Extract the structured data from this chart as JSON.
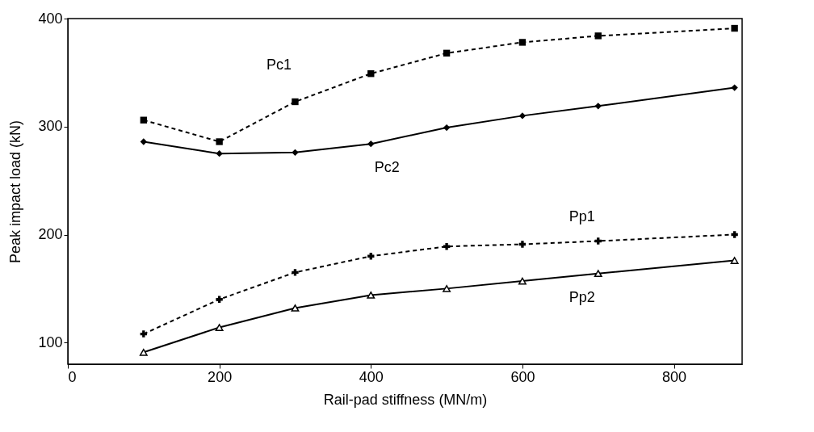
{
  "chart_data": {
    "type": "line",
    "xlabel": "Rail-pad stiffness  (MN/m)",
    "ylabel": "Peak impact load  (kN)",
    "x": [
      100,
      200,
      300,
      400,
      500,
      600,
      700,
      880
    ],
    "series": [
      {
        "name": "Pc1",
        "color": "#000000",
        "marker": "square",
        "line_style": "dashed",
        "values": [
          306,
          286,
          323,
          349,
          368,
          378,
          384,
          391
        ]
      },
      {
        "name": "Pc2",
        "color": "#000000",
        "marker": "diamond",
        "line_style": "solid",
        "values": [
          286,
          275,
          276,
          284,
          299,
          310,
          319,
          336
        ]
      },
      {
        "name": "Pp1",
        "color": "#000000",
        "marker": "cross",
        "line_style": "dashed",
        "values": [
          108,
          140,
          165,
          180,
          189,
          191,
          194,
          200
        ]
      },
      {
        "name": "Pp2",
        "color": "#000000",
        "marker": "triangle",
        "line_style": "solid",
        "values": [
          91,
          114,
          132,
          144,
          150,
          157,
          164,
          176
        ]
      }
    ],
    "xlim": [
      0,
      890
    ],
    "xticks": [
      0,
      200,
      400,
      600,
      800
    ],
    "ylim": [
      80,
      400
    ],
    "yticks": [
      100,
      200,
      300,
      400
    ],
    "grid": false,
    "legend": false
  }
}
